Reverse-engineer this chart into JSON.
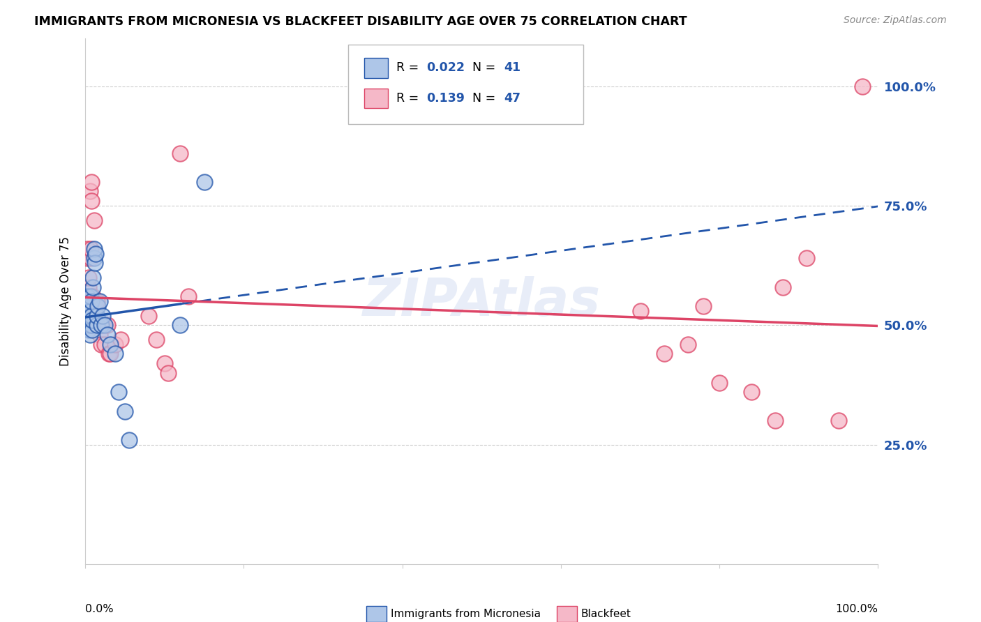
{
  "title": "IMMIGRANTS FROM MICRONESIA VS BLACKFEET DISABILITY AGE OVER 75 CORRELATION CHART",
  "source": "Source: ZipAtlas.com",
  "ylabel": "Disability Age Over 75",
  "legend_label1": "Immigrants from Micronesia",
  "legend_label2": "Blackfeet",
  "r1": "0.022",
  "n1": "41",
  "r2": "0.139",
  "n2": "47",
  "color_blue": "#aec6e8",
  "color_pink": "#f5b8c8",
  "line_blue": "#2255aa",
  "line_pink": "#dd4466",
  "ytick_labels": [
    "25.0%",
    "50.0%",
    "75.0%",
    "100.0%"
  ],
  "ytick_values": [
    0.25,
    0.5,
    0.75,
    1.0
  ],
  "xlim": [
    0.0,
    1.0
  ],
  "ylim": [
    0.0,
    1.1
  ],
  "blue_x": [
    0.001,
    0.002,
    0.003,
    0.003,
    0.004,
    0.004,
    0.004,
    0.005,
    0.005,
    0.006,
    0.006,
    0.006,
    0.007,
    0.007,
    0.007,
    0.008,
    0.008,
    0.008,
    0.009,
    0.009,
    0.01,
    0.01,
    0.011,
    0.011,
    0.012,
    0.013,
    0.015,
    0.015,
    0.016,
    0.018,
    0.02,
    0.022,
    0.025,
    0.028,
    0.032,
    0.038,
    0.042,
    0.05,
    0.055,
    0.12,
    0.15
  ],
  "blue_y": [
    0.52,
    0.5,
    0.54,
    0.56,
    0.49,
    0.51,
    0.53,
    0.5,
    0.52,
    0.48,
    0.51,
    0.54,
    0.5,
    0.53,
    0.56,
    0.5,
    0.52,
    0.55,
    0.49,
    0.51,
    0.58,
    0.6,
    0.64,
    0.66,
    0.63,
    0.65,
    0.5,
    0.52,
    0.54,
    0.55,
    0.5,
    0.52,
    0.5,
    0.48,
    0.46,
    0.44,
    0.36,
    0.32,
    0.26,
    0.5,
    0.8
  ],
  "pink_x": [
    0.001,
    0.002,
    0.003,
    0.003,
    0.004,
    0.004,
    0.005,
    0.005,
    0.006,
    0.007,
    0.007,
    0.008,
    0.008,
    0.009,
    0.01,
    0.01,
    0.011,
    0.012,
    0.013,
    0.015,
    0.016,
    0.018,
    0.02,
    0.022,
    0.025,
    0.028,
    0.03,
    0.032,
    0.038,
    0.045,
    0.08,
    0.09,
    0.1,
    0.105,
    0.12,
    0.13,
    0.7,
    0.73,
    0.76,
    0.78,
    0.8,
    0.84,
    0.87,
    0.88,
    0.91,
    0.95,
    0.98
  ],
  "pink_y": [
    0.52,
    0.56,
    0.64,
    0.66,
    0.58,
    0.6,
    0.5,
    0.53,
    0.78,
    0.64,
    0.66,
    0.76,
    0.8,
    0.53,
    0.56,
    0.52,
    0.72,
    0.5,
    0.54,
    0.55,
    0.5,
    0.48,
    0.46,
    0.5,
    0.46,
    0.5,
    0.44,
    0.44,
    0.46,
    0.47,
    0.52,
    0.47,
    0.42,
    0.4,
    0.86,
    0.56,
    0.53,
    0.44,
    0.46,
    0.54,
    0.38,
    0.36,
    0.3,
    0.58,
    0.64,
    0.3,
    1.0
  ],
  "line_start_x": 0.0,
  "line_solid_end_x": 0.12,
  "line_dash_start_x": 0.12,
  "line_end_x": 1.0
}
